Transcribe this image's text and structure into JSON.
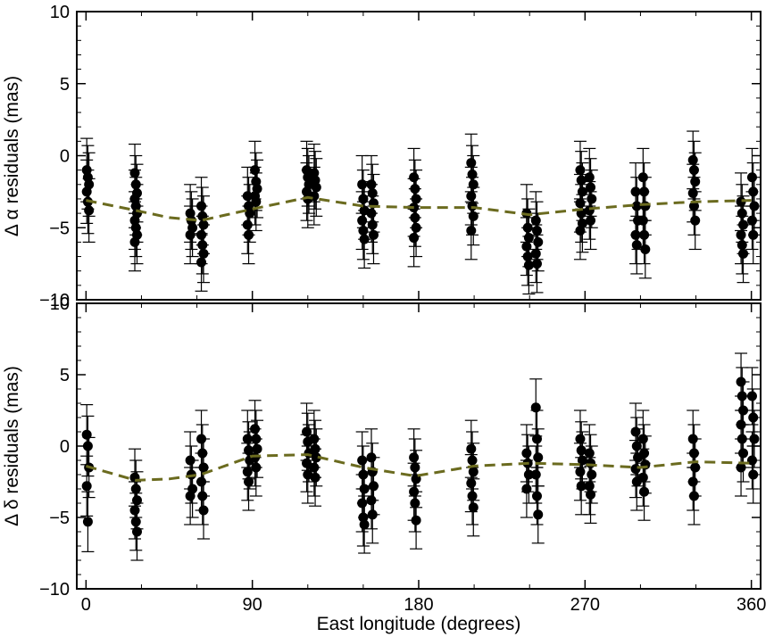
{
  "chart_data": [
    {
      "type": "scatter",
      "panel": "top",
      "ylabel": "Δ α residuals (mas)",
      "xlabel": "",
      "xlim": [
        -5,
        365
      ],
      "ylim": [
        -10,
        10
      ],
      "y_ticks": [
        -10,
        -5,
        0,
        5,
        10
      ],
      "y_tick_labels": [
        "−10",
        "−5",
        "0",
        "5",
        "10"
      ],
      "x_ticks": [
        0,
        90,
        180,
        270,
        360
      ],
      "x_tick_labels": [
        "",
        "",
        "",
        "",
        ""
      ],
      "colors": {
        "points": "#000000",
        "model": "#6b6b1f"
      },
      "series": [
        {
          "role": "data",
          "columns": [
            {
              "x": 1,
              "y": [
                -1.0,
                -1.5,
                -2.0,
                -2.5,
                -3.2,
                -3.8
              ],
              "err": 2.2
            },
            {
              "x": 27,
              "y": [
                -1.2,
                -2.0,
                -2.6,
                -3.0,
                -3.5,
                -4.0,
                -4.5,
                -5.0,
                -5.5,
                -6.0
              ],
              "err": 2.0
            },
            {
              "x": 57,
              "y": [
                -4.0,
                -4.5,
                -5.0,
                -5.5
              ],
              "err": 2.0
            },
            {
              "x": 63,
              "y": [
                -3.5,
                -4.2,
                -4.8,
                -5.5,
                -6.2,
                -6.8,
                -7.4
              ],
              "err": 2.0
            },
            {
              "x": 88,
              "y": [
                -2.8,
                -3.5,
                -4.0,
                -4.8,
                -5.5
              ],
              "err": 2.0
            },
            {
              "x": 92,
              "y": [
                -1.0,
                -1.8,
                -2.3,
                -2.8,
                -3.2
              ],
              "err": 2.0
            },
            {
              "x": 120,
              "y": [
                -1.0,
                -1.5,
                -2.0,
                -2.5,
                -3.0
              ],
              "err": 2.0
            },
            {
              "x": 124,
              "y": [
                -1.2,
                -1.7,
                -2.2,
                -2.8
              ],
              "err": 2.0
            },
            {
              "x": 150,
              "y": [
                -2.0,
                -3.0,
                -3.8,
                -4.5,
                -5.2,
                -5.8
              ],
              "err": 2.0
            },
            {
              "x": 155,
              "y": [
                -2.0,
                -2.6,
                -3.3,
                -4.0,
                -4.8,
                -5.5
              ],
              "err": 2.0
            },
            {
              "x": 178,
              "y": [
                -1.5,
                -2.3,
                -3.0,
                -3.6,
                -4.3,
                -5.0,
                -5.7
              ],
              "err": 2.0
            },
            {
              "x": 209,
              "y": [
                -0.5,
                -1.3,
                -2.0,
                -2.8,
                -3.5,
                -4.2,
                -5.2
              ],
              "err": 2.0
            },
            {
              "x": 239,
              "y": [
                -4.0,
                -5.0,
                -5.7,
                -6.3,
                -7.0,
                -7.6
              ],
              "err": 2.0
            },
            {
              "x": 244,
              "y": [
                -4.5,
                -5.2,
                -6.0,
                -6.8,
                -7.5
              ],
              "err": 2.0
            },
            {
              "x": 268,
              "y": [
                -1.0,
                -1.7,
                -2.5,
                -3.3,
                -4.0,
                -4.7,
                -5.2
              ],
              "err": 2.0
            },
            {
              "x": 273,
              "y": [
                -1.5,
                -2.2,
                -3.0,
                -3.8,
                -4.5
              ],
              "err": 2.0
            },
            {
              "x": 298,
              "y": [
                -2.5,
                -3.5,
                -4.5,
                -5.5,
                -6.2
              ],
              "err": 2.0
            },
            {
              "x": 302,
              "y": [
                -1.5,
                -2.5,
                -3.5,
                -4.5,
                -5.5,
                -6.5
              ],
              "err": 2.0
            },
            {
              "x": 329,
              "y": [
                -0.3,
                -1.0,
                -1.8,
                -2.6,
                -3.5,
                -4.5
              ],
              "err": 2.0
            },
            {
              "x": 355,
              "y": [
                -3.2,
                -4.0,
                -4.8,
                -5.5,
                -6.2,
                -6.8
              ],
              "err": 2.0
            },
            {
              "x": 361,
              "y": [
                -1.5,
                -2.5,
                -3.5,
                -4.5,
                -5.5
              ],
              "err": 2.0
            }
          ]
        },
        {
          "role": "model",
          "style": "dashed",
          "x": [
            0,
            27,
            45,
            62,
            90,
            120,
            150,
            178,
            210,
            240,
            270,
            300,
            330,
            360
          ],
          "y": [
            -3.1,
            -3.8,
            -4.3,
            -4.5,
            -3.7,
            -2.9,
            -3.5,
            -3.6,
            -3.6,
            -4.1,
            -3.7,
            -3.4,
            -3.2,
            -3.1
          ]
        }
      ]
    },
    {
      "type": "scatter",
      "panel": "bottom",
      "ylabel": "Δ δ residuals (mas)",
      "xlabel": "East longitude (degrees)",
      "xlim": [
        -5,
        365
      ],
      "ylim": [
        -10,
        10
      ],
      "y_ticks": [
        -10,
        -5,
        0,
        5,
        10
      ],
      "y_tick_labels": [
        "−10",
        "−5",
        "0",
        "5",
        "10"
      ],
      "x_ticks": [
        0,
        90,
        180,
        270,
        360
      ],
      "x_tick_labels": [
        "0",
        "90",
        "180",
        "270",
        "360"
      ],
      "colors": {
        "points": "#000000",
        "model": "#6b6b1f"
      },
      "series": [
        {
          "role": "data",
          "columns": [
            {
              "x": 1,
              "y": [
                0.8,
                0.0,
                -1.5,
                -2.8,
                -5.3
              ],
              "err": 2.1
            },
            {
              "x": 27,
              "y": [
                -2.2,
                -3.0,
                -3.8,
                -4.5,
                -5.3,
                -6.0
              ],
              "err": 2.0
            },
            {
              "x": 57,
              "y": [
                -1.0,
                -2.0,
                -3.0,
                -3.5
              ],
              "err": 2.0
            },
            {
              "x": 63,
              "y": [
                0.5,
                -0.5,
                -1.5,
                -2.5,
                -3.5,
                -4.5
              ],
              "err": 2.0
            },
            {
              "x": 88,
              "y": [
                0.5,
                -0.3,
                -1.0,
                -1.8,
                -2.5
              ],
              "err": 2.0
            },
            {
              "x": 92,
              "y": [
                1.2,
                0.5,
                -0.2,
                -0.8,
                -1.5
              ],
              "err": 2.0
            },
            {
              "x": 120,
              "y": [
                1.0,
                0.3,
                -0.5,
                -1.2,
                -2.0
              ],
              "err": 2.0
            },
            {
              "x": 124,
              "y": [
                0.5,
                -0.2,
                -0.8,
                -1.5,
                -2.2
              ],
              "err": 2.0
            },
            {
              "x": 150,
              "y": [
                -1.0,
                -2.0,
                -3.0,
                -4.0,
                -5.0,
                -5.5
              ],
              "err": 2.0
            },
            {
              "x": 155,
              "y": [
                -0.8,
                -1.8,
                -2.8,
                -3.8,
                -4.8
              ],
              "err": 2.0
            },
            {
              "x": 178,
              "y": [
                -0.8,
                -1.5,
                -2.3,
                -3.2,
                -4.0,
                -5.2
              ],
              "err": 2.0
            },
            {
              "x": 209,
              "y": [
                -0.2,
                -1.0,
                -1.8,
                -2.6,
                -3.5,
                -4.3
              ],
              "err": 2.0
            },
            {
              "x": 239,
              "y": [
                -0.5,
                -1.2,
                -2.0,
                -3.0
              ],
              "err": 2.0
            },
            {
              "x": 244,
              "y": [
                2.7,
                0.5,
                -0.8,
                -2.0,
                -3.5,
                -4.8
              ],
              "err": 2.0
            },
            {
              "x": 268,
              "y": [
                0.5,
                -0.3,
                -1.0,
                -1.8,
                -2.8
              ],
              "err": 2.0
            },
            {
              "x": 273,
              "y": [
                -0.5,
                -1.2,
                -2.0,
                -2.8,
                -3.4
              ],
              "err": 2.0
            },
            {
              "x": 298,
              "y": [
                1.0,
                0.0,
                -0.8,
                -1.6,
                -2.5
              ],
              "err": 2.0
            },
            {
              "x": 302,
              "y": [
                0.5,
                -0.5,
                -1.3,
                -2.2,
                -3.2
              ],
              "err": 2.0
            },
            {
              "x": 329,
              "y": [
                0.5,
                -0.5,
                -1.5,
                -2.5,
                -3.5
              ],
              "err": 2.0
            },
            {
              "x": 355,
              "y": [
                4.5,
                3.5,
                2.5,
                1.5,
                0.5,
                -0.5,
                -1.5
              ],
              "err": 2.0
            },
            {
              "x": 361,
              "y": [
                3.5,
                2.0,
                0.5,
                -1.0,
                -2.0
              ],
              "err": 2.0
            }
          ]
        },
        {
          "role": "model",
          "style": "dashed",
          "x": [
            0,
            27,
            45,
            62,
            90,
            120,
            150,
            178,
            210,
            240,
            270,
            300,
            330,
            360
          ],
          "y": [
            -1.4,
            -2.4,
            -2.3,
            -2.0,
            -0.7,
            -0.6,
            -1.5,
            -2.1,
            -1.4,
            -1.2,
            -1.3,
            -1.5,
            -1.1,
            -1.2
          ]
        }
      ]
    }
  ]
}
